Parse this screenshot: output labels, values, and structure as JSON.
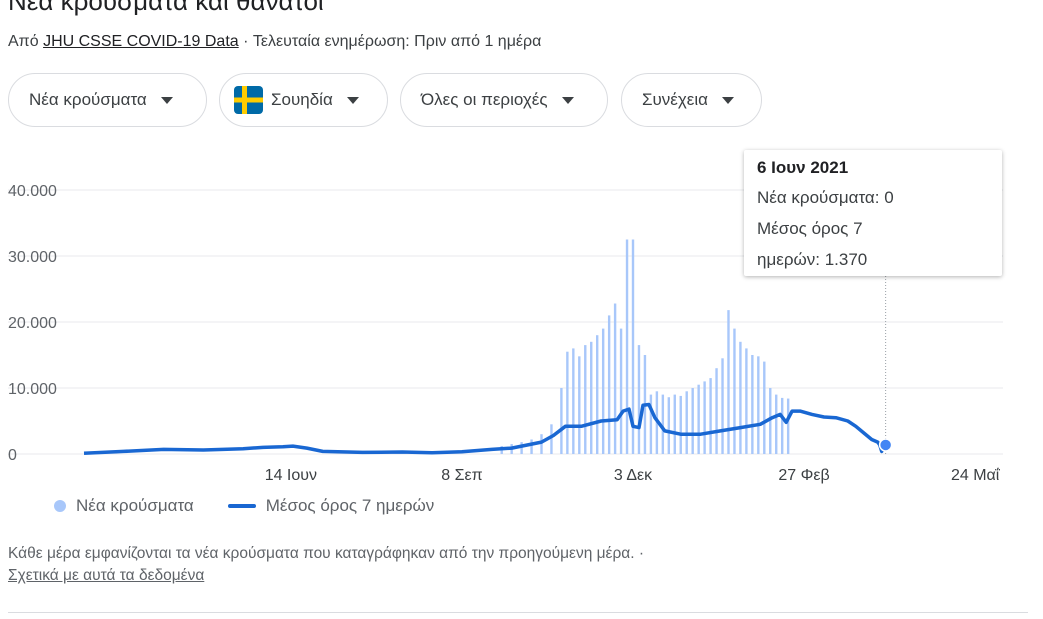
{
  "header": {
    "title": "Νέα κρούσματα και θάνατοι",
    "source_prefix": "Από ",
    "source_link": "JHU CSSE COVID-19 Data",
    "source_suffix": " · Τελευταία ενημέρωση: Πριν από 1 ημέρα"
  },
  "filters": {
    "metric": "Νέα κρούσματα",
    "country": "Σουηδία",
    "region": "Όλες οι περιοχές",
    "mode": "Συνέχεια"
  },
  "tooltip": {
    "date": "6 Ιουν 2021",
    "line1": "Νέα κρούσματα: 0",
    "line2": "Μέσος όρος 7",
    "line3": "ημερών: 1.370"
  },
  "legend": {
    "bars": "Νέα κρούσματα",
    "line": "Μέσος όρος 7 ημερών"
  },
  "footer": {
    "note": "Κάθε μέρα εμφανίζονται τα νέα κρούσματα που καταγράφηκαν από την προηγούμενη μέρα.  ·",
    "about_link": "Σχετικά με αυτά τα δεδομένα"
  },
  "colors": {
    "bars": "#a8c7fa",
    "line": "#1967d2",
    "grid": "#e8eaed",
    "marker": "#4285f4"
  },
  "chart_data": {
    "type": "bar",
    "ylim": [
      0,
      40000
    ],
    "yticks": [
      {
        "value": 0,
        "label": "0"
      },
      {
        "value": 10000,
        "label": "10.000"
      },
      {
        "value": 20000,
        "label": "20.000"
      },
      {
        "value": 30000,
        "label": "30.000"
      },
      {
        "value": 40000,
        "label": "40.000"
      }
    ],
    "xticks": [
      {
        "day": 104,
        "label": "14 Ιουν"
      },
      {
        "day": 190,
        "label": "8 Σεπ"
      },
      {
        "day": 276,
        "label": "3 Δεκ"
      },
      {
        "day": 362,
        "label": "27 Φεβ"
      },
      {
        "day": 448,
        "label": "24 Μαΐ"
      }
    ],
    "day_range": [
      0,
      461
    ],
    "series": [
      {
        "name": "Νέα κρούσματα",
        "points": [
          [
            210,
            1200
          ],
          [
            215,
            1500
          ],
          [
            220,
            1800
          ],
          [
            225,
            2200
          ],
          [
            230,
            3000
          ],
          [
            235,
            4500
          ],
          [
            240,
            10000
          ],
          [
            243,
            15500
          ],
          [
            246,
            16000
          ],
          [
            249,
            14800
          ],
          [
            252,
            16500
          ],
          [
            255,
            17000
          ],
          [
            258,
            18000
          ],
          [
            261,
            19000
          ],
          [
            264,
            21000
          ],
          [
            267,
            22800
          ],
          [
            270,
            19000
          ],
          [
            273,
            32500
          ],
          [
            276,
            32500
          ],
          [
            279,
            16500
          ],
          [
            282,
            15000
          ],
          [
            285,
            9000
          ],
          [
            288,
            9500
          ],
          [
            291,
            9000
          ],
          [
            294,
            8600
          ],
          [
            297,
            9000
          ],
          [
            300,
            8800
          ],
          [
            303,
            9500
          ],
          [
            306,
            10000
          ],
          [
            309,
            10500
          ],
          [
            312,
            11000
          ],
          [
            315,
            11500
          ],
          [
            318,
            13000
          ],
          [
            321,
            14500
          ],
          [
            324,
            21800
          ],
          [
            327,
            19000
          ],
          [
            330,
            17000
          ],
          [
            333,
            16000
          ],
          [
            336,
            15000
          ],
          [
            339,
            14800
          ],
          [
            342,
            14000
          ],
          [
            345,
            10000
          ],
          [
            348,
            9000
          ],
          [
            351,
            8500
          ],
          [
            354,
            8400
          ]
        ]
      },
      {
        "name": "Μέσος όρος 7 ημερών",
        "points": [
          [
            0,
            100
          ],
          [
            20,
            400
          ],
          [
            40,
            700
          ],
          [
            60,
            600
          ],
          [
            80,
            800
          ],
          [
            90,
            1000
          ],
          [
            100,
            1100
          ],
          [
            105,
            1200
          ],
          [
            112,
            900
          ],
          [
            120,
            400
          ],
          [
            140,
            250
          ],
          [
            160,
            300
          ],
          [
            175,
            200
          ],
          [
            190,
            350
          ],
          [
            205,
            700
          ],
          [
            215,
            900
          ],
          [
            225,
            1500
          ],
          [
            230,
            1800
          ],
          [
            236,
            2800
          ],
          [
            242,
            4200
          ],
          [
            250,
            4200
          ],
          [
            260,
            5000
          ],
          [
            268,
            5200
          ],
          [
            271,
            6500
          ],
          [
            274,
            6800
          ],
          [
            276,
            4200
          ],
          [
            279,
            4000
          ],
          [
            281,
            7400
          ],
          [
            284,
            7500
          ],
          [
            287,
            5500
          ],
          [
            292,
            3500
          ],
          [
            300,
            3000
          ],
          [
            310,
            3000
          ],
          [
            320,
            3500
          ],
          [
            330,
            4000
          ],
          [
            340,
            4500
          ],
          [
            346,
            5500
          ],
          [
            350,
            6000
          ],
          [
            353,
            4800
          ],
          [
            356,
            6500
          ],
          [
            360,
            6500
          ],
          [
            366,
            6000
          ],
          [
            372,
            5600
          ],
          [
            378,
            5500
          ],
          [
            384,
            5000
          ],
          [
            388,
            4200
          ],
          [
            392,
            3200
          ],
          [
            396,
            2200
          ],
          [
            399,
            1800
          ],
          [
            400,
            1400
          ],
          [
            401,
            400
          ],
          [
            403,
            1400
          ]
        ]
      }
    ],
    "highlight": {
      "day": 403,
      "value": 1370
    }
  }
}
